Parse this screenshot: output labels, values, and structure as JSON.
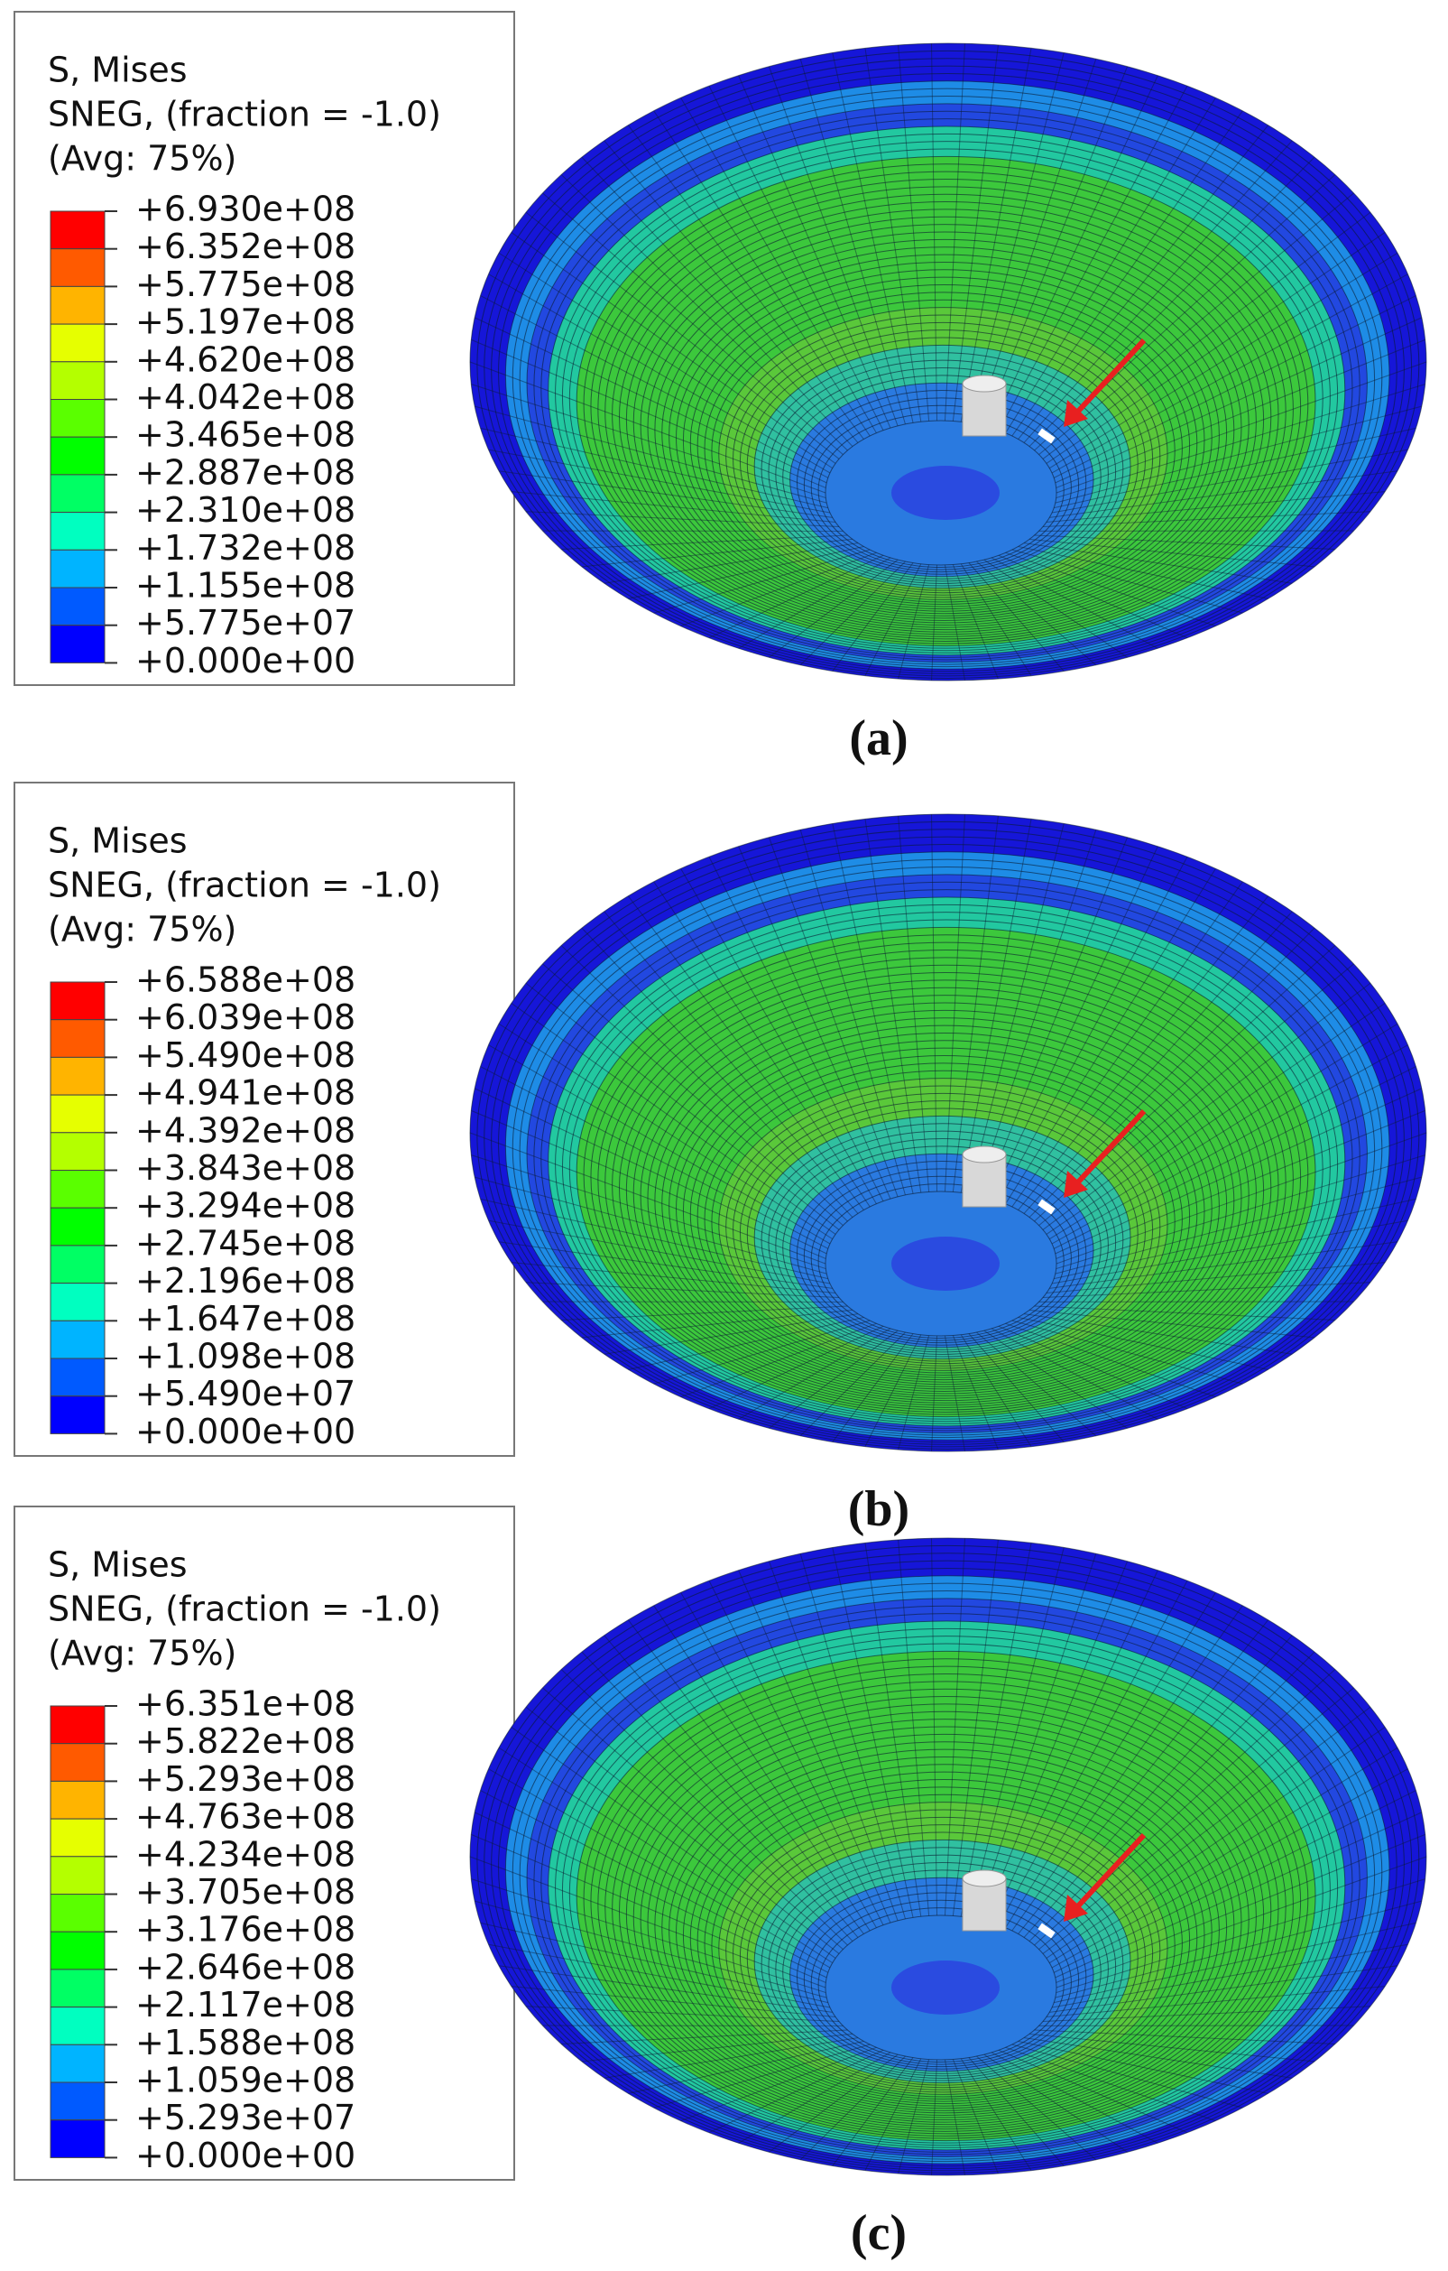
{
  "panels": [
    {
      "legend": {
        "title": [
          "S, Mises",
          "SNEG, (fraction = -1.0)",
          "(Avg: 75%)"
        ],
        "levels": [
          "+6.930e+08",
          "+6.352e+08",
          "+5.775e+08",
          "+5.197e+08",
          "+4.620e+08",
          "+4.042e+08",
          "+3.465e+08",
          "+2.887e+08",
          "+2.310e+08",
          "+1.732e+08",
          "+1.155e+08",
          "+5.775e+07",
          "+0.000e+00"
        ]
      },
      "caption": "(a)"
    },
    {
      "legend": {
        "title": [
          "S, Mises",
          "SNEG, (fraction = -1.0)",
          "(Avg: 75%)"
        ],
        "levels": [
          "+6.588e+08",
          "+6.039e+08",
          "+5.490e+08",
          "+4.941e+08",
          "+4.392e+08",
          "+3.843e+08",
          "+3.294e+08",
          "+2.745e+08",
          "+2.196e+08",
          "+1.647e+08",
          "+1.098e+08",
          "+5.490e+07",
          "+0.000e+00"
        ]
      },
      "caption": "(b)"
    },
    {
      "legend": {
        "title": [
          "S, Mises",
          "SNEG, (fraction = -1.0)",
          "(Avg: 75%)"
        ],
        "levels": [
          "+6.351e+08",
          "+5.822e+08",
          "+5.293e+08",
          "+4.763e+08",
          "+4.234e+08",
          "+3.705e+08",
          "+3.176e+08",
          "+2.646e+08",
          "+2.117e+08",
          "+1.588e+08",
          "+1.059e+08",
          "+5.293e+07",
          "+0.000e+00"
        ]
      },
      "caption": "(c)"
    }
  ]
}
